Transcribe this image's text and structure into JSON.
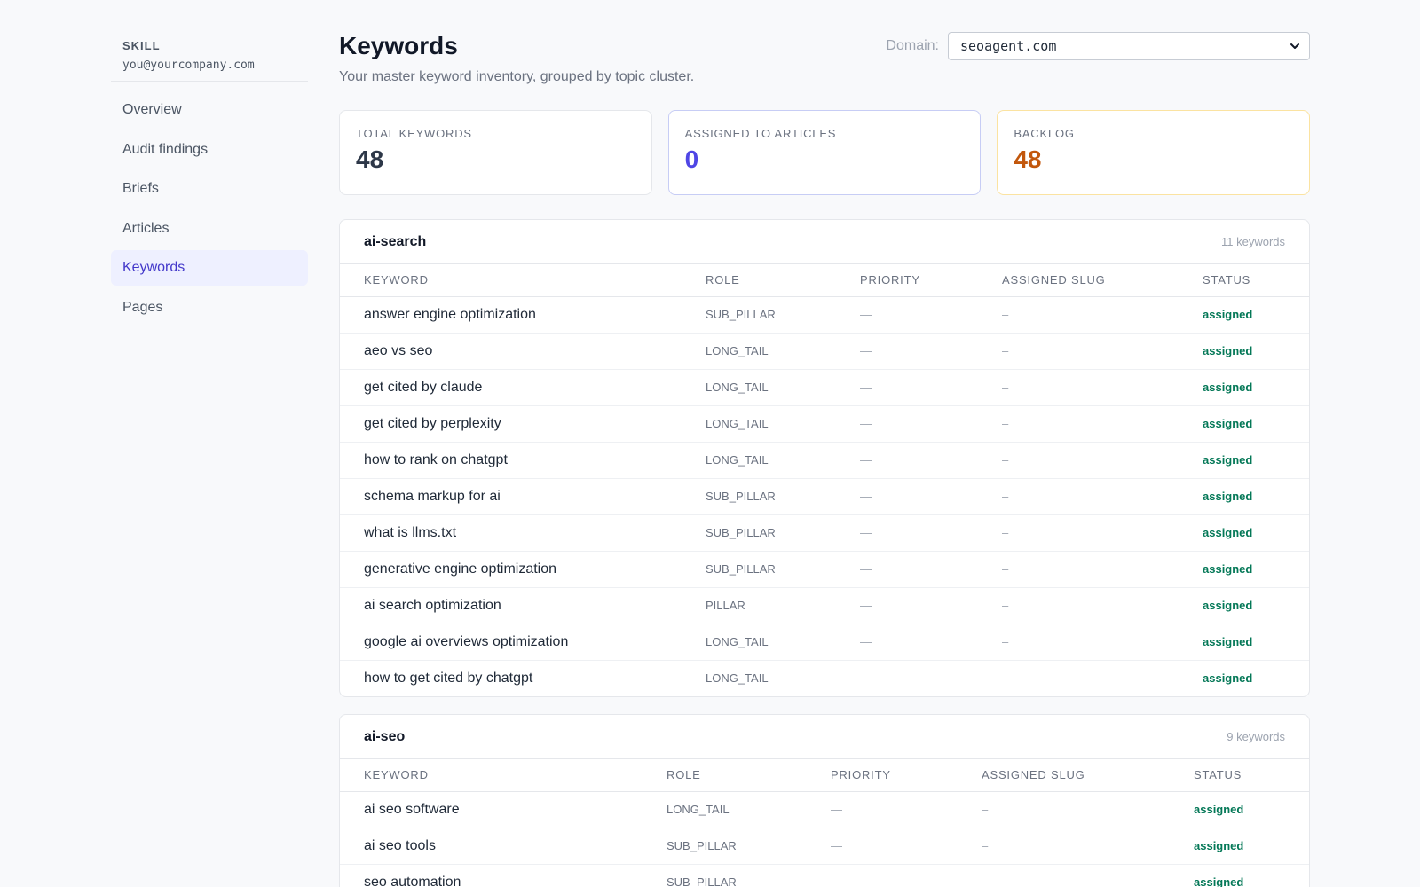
{
  "sidebar": {
    "brand": "SKILL",
    "email": "you@yourcompany.com",
    "items": [
      {
        "label": "Overview"
      },
      {
        "label": "Audit findings"
      },
      {
        "label": "Briefs"
      },
      {
        "label": "Articles"
      },
      {
        "label": "Keywords",
        "active": true
      },
      {
        "label": "Pages"
      }
    ]
  },
  "header": {
    "title": "Keywords",
    "subtitle": "Your master keyword inventory, grouped by topic cluster.",
    "domain_label": "Domain:",
    "domain_value": "seoagent.com"
  },
  "stats": [
    {
      "label": "TOTAL KEYWORDS",
      "value": "48"
    },
    {
      "label": "ASSIGNED TO ARTICLES",
      "value": "0"
    },
    {
      "label": "BACKLOG",
      "value": "48"
    }
  ],
  "columns": [
    "KEYWORD",
    "ROLE",
    "PRIORITY",
    "ASSIGNED SLUG",
    "STATUS"
  ],
  "clusters": [
    {
      "name": "ai-search",
      "count": "11 keywords",
      "rows": [
        {
          "keyword": "answer engine optimization",
          "role": "SUB_PILLAR",
          "priority": "—",
          "slug": "–",
          "status": "assigned"
        },
        {
          "keyword": "aeo vs seo",
          "role": "LONG_TAIL",
          "priority": "—",
          "slug": "–",
          "status": "assigned"
        },
        {
          "keyword": "get cited by claude",
          "role": "LONG_TAIL",
          "priority": "—",
          "slug": "–",
          "status": "assigned"
        },
        {
          "keyword": "get cited by perplexity",
          "role": "LONG_TAIL",
          "priority": "—",
          "slug": "–",
          "status": "assigned"
        },
        {
          "keyword": "how to rank on chatgpt",
          "role": "LONG_TAIL",
          "priority": "—",
          "slug": "–",
          "status": "assigned"
        },
        {
          "keyword": "schema markup for ai",
          "role": "SUB_PILLAR",
          "priority": "—",
          "slug": "–",
          "status": "assigned"
        },
        {
          "keyword": "what is llms.txt",
          "role": "SUB_PILLAR",
          "priority": "—",
          "slug": "–",
          "status": "assigned"
        },
        {
          "keyword": "generative engine optimization",
          "role": "SUB_PILLAR",
          "priority": "—",
          "slug": "–",
          "status": "assigned"
        },
        {
          "keyword": "ai search optimization",
          "role": "PILLAR",
          "priority": "—",
          "slug": "–",
          "status": "assigned"
        },
        {
          "keyword": "google ai overviews optimization",
          "role": "LONG_TAIL",
          "priority": "—",
          "slug": "–",
          "status": "assigned"
        },
        {
          "keyword": "how to get cited by chatgpt",
          "role": "LONG_TAIL",
          "priority": "—",
          "slug": "–",
          "status": "assigned"
        }
      ]
    },
    {
      "name": "ai-seo",
      "count": "9 keywords",
      "rows": [
        {
          "keyword": "ai seo software",
          "role": "LONG_TAIL",
          "priority": "—",
          "slug": "–",
          "status": "assigned"
        },
        {
          "keyword": "ai seo tools",
          "role": "SUB_PILLAR",
          "priority": "—",
          "slug": "–",
          "status": "assigned"
        },
        {
          "keyword": "seo automation",
          "role": "SUB_PILLAR",
          "priority": "—",
          "slug": "–",
          "status": "assigned"
        }
      ]
    }
  ],
  "colors": {
    "accent": "#4f46e5",
    "backlog": "#c2570c",
    "status_assigned": "#047857",
    "active_nav_bg": "#eef0ff"
  },
  "icons": {
    "domain_select": "chevron-down-icon"
  }
}
